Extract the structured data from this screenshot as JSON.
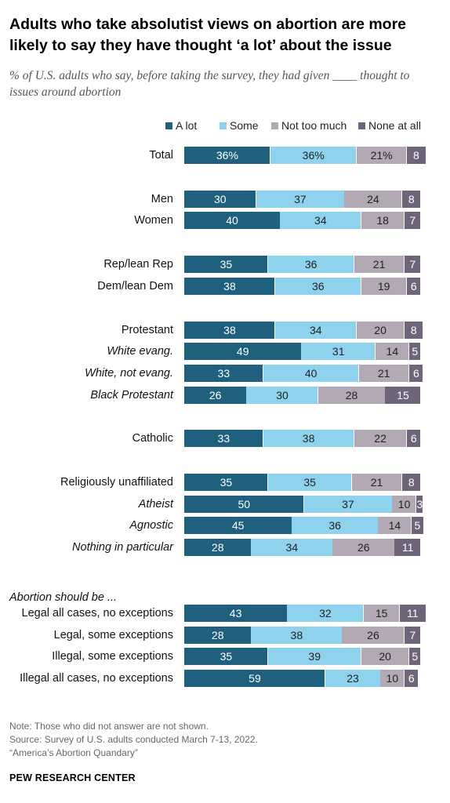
{
  "title": "Adults who take absolutist views on abortion are more likely to say they have thought ‘a lot’ about the issue",
  "subtitle": "% of U.S. adults who say, before taking the survey, they had given ____ thought to issues around abortion",
  "colors": {
    "a_lot": "#1f607e",
    "some": "#8ed2ee",
    "not_too_much": "#b3a9b4",
    "none_at_all": "#6f657a"
  },
  "chart_data": {
    "type": "bar",
    "orientation": "horizontal",
    "stacked": true,
    "xlim": [
      0,
      100
    ],
    "legend_position": "top-right",
    "series": [
      {
        "name": "A lot",
        "color": "#1f607e",
        "label_color": "#ffffff"
      },
      {
        "name": "Some",
        "color": "#8ed2ee",
        "label_color": "#222222"
      },
      {
        "name": "Not too much",
        "color": "#b3a9b4",
        "label_color": "#222222"
      },
      {
        "name": "None at all",
        "color": "#6f657a",
        "label_color": "#ffffff"
      }
    ],
    "groups": [
      {
        "rows": [
          {
            "label": "Total",
            "italic": false,
            "values": [
              36,
              36,
              21,
              8
            ],
            "value_labels": [
              "36%",
              "36%",
              "21%",
              "8"
            ]
          }
        ]
      },
      {
        "rows": [
          {
            "label": "Men",
            "italic": false,
            "values": [
              30,
              37,
              24,
              8
            ],
            "value_labels": [
              "30",
              "37",
              "24",
              "8"
            ]
          },
          {
            "label": "Women",
            "italic": false,
            "values": [
              40,
              34,
              18,
              7
            ],
            "value_labels": [
              "40",
              "34",
              "18",
              "7"
            ]
          }
        ]
      },
      {
        "rows": [
          {
            "label": "Rep/lean Rep",
            "italic": false,
            "values": [
              35,
              36,
              21,
              7
            ],
            "value_labels": [
              "35",
              "36",
              "21",
              "7"
            ]
          },
          {
            "label": "Dem/lean Dem",
            "italic": false,
            "values": [
              38,
              36,
              19,
              6
            ],
            "value_labels": [
              "38",
              "36",
              "19",
              "6"
            ]
          }
        ]
      },
      {
        "rows": [
          {
            "label": "Protestant",
            "italic": false,
            "values": [
              38,
              34,
              20,
              8
            ],
            "value_labels": [
              "38",
              "34",
              "20",
              "8"
            ]
          },
          {
            "label": "White evang.",
            "italic": true,
            "values": [
              49,
              31,
              14,
              5
            ],
            "value_labels": [
              "49",
              "31",
              "14",
              "5"
            ]
          },
          {
            "label": "White, not evang.",
            "italic": true,
            "values": [
              33,
              40,
              21,
              6
            ],
            "value_labels": [
              "33",
              "40",
              "21",
              "6"
            ]
          },
          {
            "label": "Black Protestant",
            "italic": true,
            "values": [
              26,
              30,
              28,
              15
            ],
            "value_labels": [
              "26",
              "30",
              "28",
              "15"
            ]
          }
        ]
      },
      {
        "rows": [
          {
            "label": "Catholic",
            "italic": false,
            "values": [
              33,
              38,
              22,
              6
            ],
            "value_labels": [
              "33",
              "38",
              "22",
              "6"
            ]
          }
        ]
      },
      {
        "rows": [
          {
            "label": "Religiously unaffiliated",
            "italic": false,
            "values": [
              35,
              35,
              21,
              8
            ],
            "value_labels": [
              "35",
              "35",
              "21",
              "8"
            ]
          },
          {
            "label": "Atheist",
            "italic": true,
            "values": [
              50,
              37,
              10,
              3
            ],
            "value_labels": [
              "50",
              "37",
              "10",
              "3"
            ]
          },
          {
            "label": "Agnostic",
            "italic": true,
            "values": [
              45,
              36,
              14,
              5
            ],
            "value_labels": [
              "45",
              "36",
              "14",
              "5"
            ]
          },
          {
            "label": "Nothing in particular",
            "italic": true,
            "values": [
              28,
              34,
              26,
              11
            ],
            "value_labels": [
              "28",
              "34",
              "26",
              "11"
            ]
          }
        ]
      },
      {
        "heading": "Abortion should be ...",
        "rows": [
          {
            "label": "Legal all cases, no exceptions",
            "italic": false,
            "values": [
              43,
              32,
              15,
              11
            ],
            "value_labels": [
              "43",
              "32",
              "15",
              "11"
            ]
          },
          {
            "label": "Legal, some exceptions",
            "italic": false,
            "values": [
              28,
              38,
              26,
              7
            ],
            "value_labels": [
              "28",
              "38",
              "26",
              "7"
            ]
          },
          {
            "label": "Illegal, some exceptions",
            "italic": false,
            "values": [
              35,
              39,
              20,
              5
            ],
            "value_labels": [
              "35",
              "39",
              "20",
              "5"
            ]
          },
          {
            "label": "Illegal all cases, no exceptions",
            "italic": false,
            "values": [
              59,
              23,
              10,
              6
            ],
            "value_labels": [
              "59",
              "23",
              "10",
              "6"
            ]
          }
        ]
      }
    ]
  },
  "notes": {
    "note": "Note: Those who did not answer are not shown.",
    "source": "Source: Survey of U.S. adults conducted March 7-13, 2022.",
    "report": "“America’s Abortion Quandary”"
  },
  "branding": "PEW RESEARCH CENTER"
}
